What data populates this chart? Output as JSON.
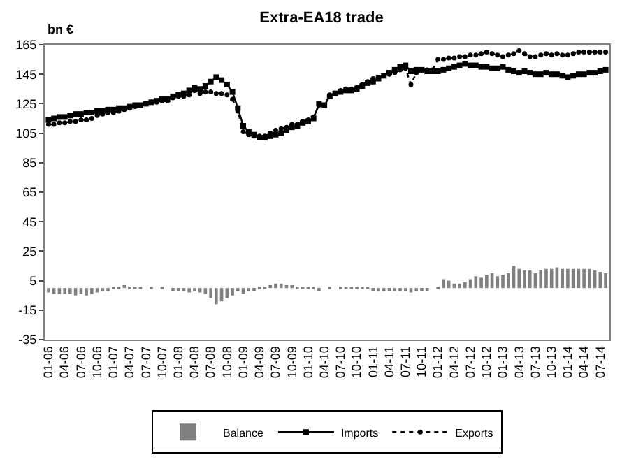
{
  "chart_data": {
    "type": "line",
    "title": "Extra-EA18 trade",
    "ylabel": "bn €",
    "categories": [
      "01-06",
      null,
      null,
      "04-06",
      null,
      null,
      "07-06",
      null,
      null,
      "10-06",
      null,
      null,
      "01-07",
      null,
      null,
      "04-07",
      null,
      null,
      "07-07",
      null,
      null,
      "10-07",
      null,
      null,
      "01-08",
      null,
      null,
      "04-08",
      null,
      null,
      "07-08",
      null,
      null,
      "10-08",
      null,
      null,
      "01-09",
      null,
      null,
      "04-09",
      null,
      null,
      "07-09",
      null,
      null,
      "10-09",
      null,
      null,
      "01-10",
      null,
      null,
      "04-10",
      null,
      null,
      "07-10",
      null,
      null,
      "10-10",
      null,
      null,
      "01-11",
      null,
      null,
      "04-11",
      null,
      null,
      "07-11",
      null,
      null,
      "10-11",
      null,
      null,
      "01-12",
      null,
      null,
      "04-12",
      null,
      null,
      "07-12",
      null,
      null,
      "10-12",
      null,
      null,
      "01-13",
      null,
      null,
      "04-13",
      null,
      null,
      "07-13",
      null,
      null,
      "10-13",
      null,
      null,
      "01-14",
      null,
      null,
      "04-14",
      null,
      null,
      "07-14",
      null
    ],
    "series": [
      {
        "name": "Balance",
        "type": "bar",
        "color": "#808080",
        "values": [
          -3,
          -4,
          -4,
          -4,
          -4,
          -5,
          -4,
          -5,
          -4,
          -3,
          -2,
          -2,
          1,
          1,
          2,
          1,
          1,
          1,
          0,
          1,
          0,
          1,
          0,
          -1,
          -1,
          -2,
          -3,
          -2,
          -3,
          -4,
          -7,
          -11,
          -9,
          -7,
          -5,
          -2,
          -4,
          -2,
          -1,
          1,
          1,
          2,
          3,
          3,
          2,
          2,
          1,
          1,
          1,
          1,
          -1,
          0,
          1,
          0,
          1,
          1,
          1,
          1,
          1,
          1,
          -1,
          -2,
          -2,
          -1,
          -2,
          -2,
          -2,
          -3,
          -2,
          -1,
          -1,
          0,
          1,
          6,
          5,
          3,
          3,
          4,
          6,
          8,
          7,
          9,
          10,
          8,
          9,
          10,
          15,
          13,
          12,
          12,
          10,
          12,
          13,
          13,
          14,
          13,
          13,
          13,
          13,
          13,
          13,
          12,
          11,
          10
        ]
      },
      {
        "name": "Imports",
        "color": "#000000",
        "marker": "square",
        "line_style": "solid",
        "values": [
          114,
          115,
          116,
          116,
          117,
          118,
          118,
          119,
          119,
          120,
          120,
          121,
          121,
          122,
          122,
          123,
          124,
          124,
          125,
          126,
          127,
          128,
          128,
          130,
          131,
          132,
          134,
          136,
          135,
          137,
          140,
          143,
          141,
          138,
          133,
          122,
          110,
          106,
          104,
          102,
          102,
          103,
          104,
          105,
          107,
          109,
          110,
          112,
          113,
          115,
          125,
          124,
          130,
          132,
          133,
          134,
          134,
          135,
          137,
          139,
          140,
          142,
          144,
          146,
          148,
          150,
          151,
          147,
          148,
          148,
          147,
          147,
          147,
          148,
          149,
          150,
          151,
          152,
          151,
          151,
          150,
          150,
          149,
          149,
          150,
          148,
          147,
          146,
          147,
          146,
          145,
          145,
          146,
          145,
          145,
          144,
          143,
          144,
          145,
          145,
          146,
          146,
          147,
          148
        ]
      },
      {
        "name": "Exports",
        "color": "#000000",
        "marker": "circle",
        "line_style": "dotted",
        "values": [
          111,
          111,
          112,
          112,
          113,
          113,
          114,
          114,
          115,
          117,
          118,
          119,
          119,
          120,
          121,
          122,
          123,
          124,
          125,
          126,
          126,
          127,
          127,
          129,
          130,
          130,
          131,
          134,
          132,
          133,
          133,
          132,
          132,
          131,
          128,
          120,
          106,
          104,
          103,
          103,
          103,
          105,
          107,
          108,
          109,
          111,
          111,
          113,
          114,
          116,
          124,
          124,
          131,
          132,
          134,
          135,
          135,
          136,
          138,
          140,
          142,
          143,
          144,
          145,
          146,
          148,
          149,
          138,
          146,
          148,
          148,
          148,
          155,
          155,
          156,
          156,
          157,
          157,
          158,
          158,
          159,
          160,
          159,
          158,
          157,
          158,
          159,
          161,
          159,
          157,
          157,
          158,
          159,
          158,
          159,
          158,
          158,
          159,
          160,
          160,
          160,
          160,
          160,
          160
        ]
      }
    ],
    "ylim": [
      -35,
      165
    ],
    "yticks": [
      -35,
      -15,
      5,
      25,
      45,
      65,
      85,
      105,
      125,
      145,
      165
    ],
    "legend": "bottom"
  }
}
